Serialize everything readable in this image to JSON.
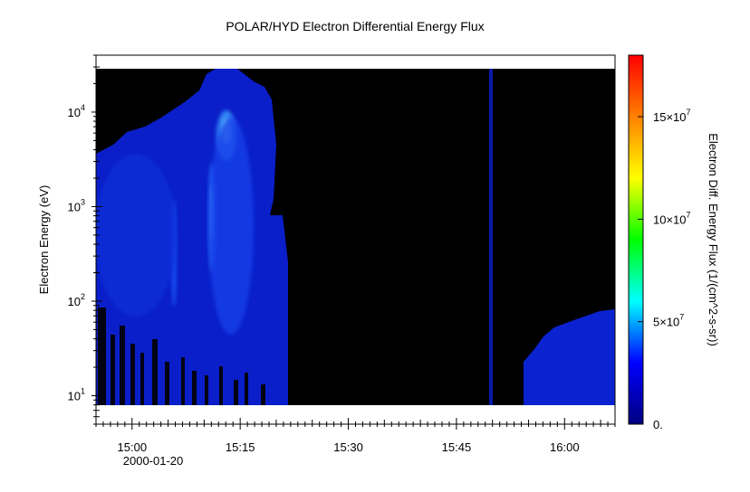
{
  "chart_data": {
    "type": "heatmap",
    "title": "POLAR/HYD  Electron Differential Energy Flux",
    "ylabel": "Electron Energy (eV)",
    "colorbar_label": "Electron Diff. Energy Flux (1/(cm^2-s-sr))",
    "x_axis": {
      "type": "time",
      "range": [
        "14:55",
        "16:07"
      ],
      "ticks": [
        "15:00",
        "15:15",
        "15:30",
        "15:45",
        "16:00"
      ],
      "date_label": "2000-01-20"
    },
    "y_axis": {
      "scale": "log",
      "range": [
        5,
        40000
      ],
      "ticks": [
        {
          "value": 10,
          "base": "10",
          "exp": "1"
        },
        {
          "value": 100,
          "base": "10",
          "exp": "2"
        },
        {
          "value": 1000,
          "base": "10",
          "exp": "3"
        },
        {
          "value": 10000,
          "base": "10",
          "exp": "4"
        }
      ]
    },
    "colorbar": {
      "range": [
        0,
        180000000
      ],
      "colormap": [
        "#000080",
        "#0000ff",
        "#00ffff",
        "#00ff00",
        "#ffff00",
        "#ff8000",
        "#ff0000"
      ],
      "ticks": [
        {
          "value": 0,
          "label": "0.",
          "exp": ""
        },
        {
          "value": 50000000,
          "label": "5×10",
          "exp": "7"
        },
        {
          "value": 100000000,
          "label": "10×10",
          "exp": "7"
        },
        {
          "value": 150000000,
          "label": "15×10",
          "exp": "7"
        }
      ]
    },
    "background_color": "#000000",
    "no_data_color": "#ffffff"
  }
}
